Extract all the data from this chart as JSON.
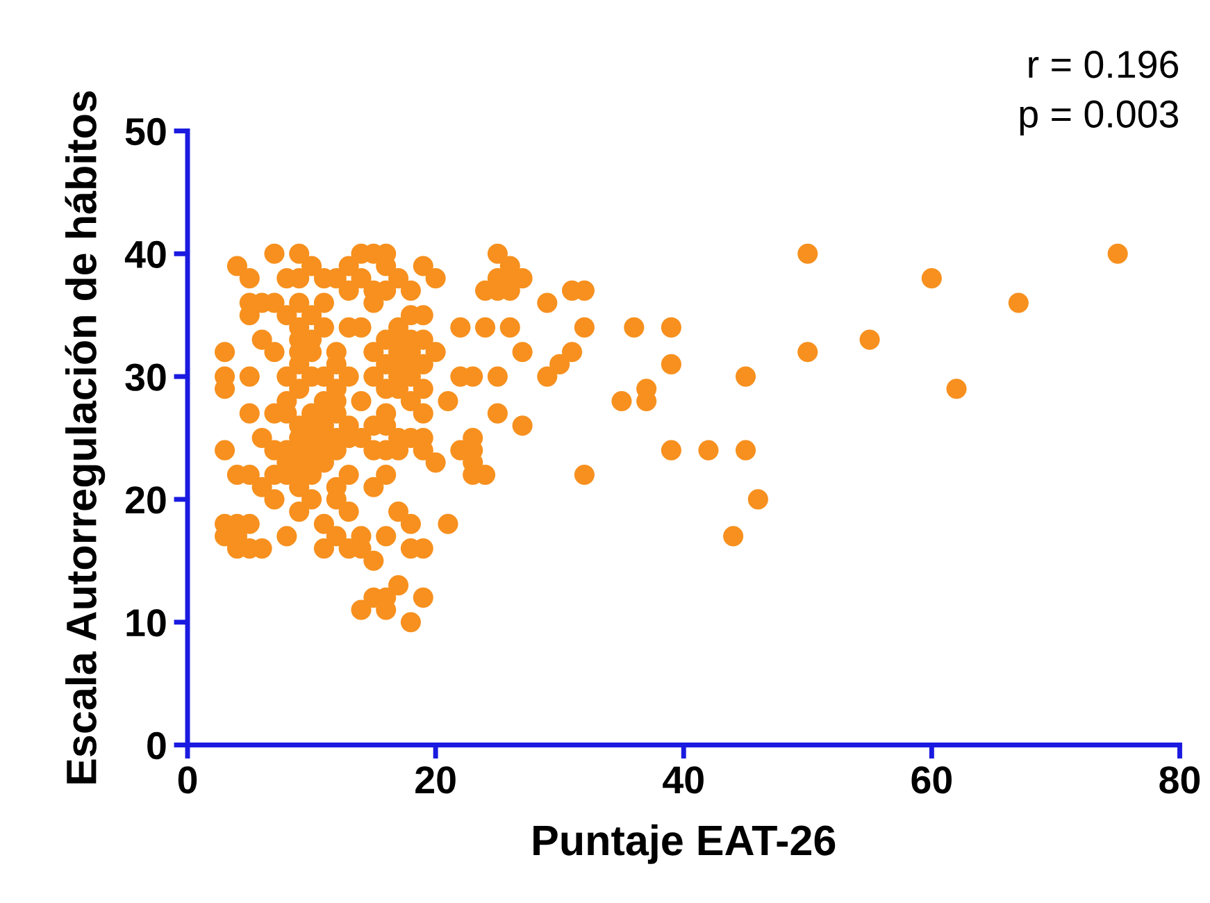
{
  "chart_data": {
    "type": "scatter",
    "xlabel": "Puntaje EAT-26",
    "ylabel": "Escala Autorregulación de hábitos",
    "annotations": [
      "r = 0.196",
      "p = 0.003"
    ],
    "xlim": [
      0,
      80
    ],
    "xticks": [
      0,
      20,
      40,
      60,
      80
    ],
    "ylim": [
      0,
      50
    ],
    "yticks": [
      0,
      10,
      20,
      30,
      40,
      50
    ],
    "grid": false,
    "marker": "circle",
    "series": [
      {
        "color": "#f7901e",
        "x": [
          3,
          3,
          3,
          3,
          3,
          3,
          4,
          4,
          4,
          4,
          4,
          5,
          5,
          5,
          5,
          5,
          5,
          5,
          5,
          6,
          6,
          6,
          6,
          6,
          7,
          7,
          7,
          7,
          7,
          7,
          7,
          8,
          8,
          8,
          8,
          8,
          8,
          8,
          8,
          8,
          9,
          9,
          9,
          9,
          9,
          9,
          9,
          9,
          9,
          9,
          9,
          9,
          9,
          9,
          9,
          10,
          10,
          10,
          10,
          10,
          10,
          10,
          10,
          10,
          10,
          10,
          10,
          11,
          11,
          11,
          11,
          11,
          11,
          11,
          11,
          11,
          11,
          11,
          11,
          12,
          12,
          12,
          12,
          12,
          12,
          12,
          12,
          12,
          12,
          12,
          13,
          13,
          13,
          13,
          13,
          13,
          13,
          13,
          13,
          14,
          14,
          14,
          14,
          14,
          14,
          14,
          14,
          15,
          15,
          15,
          15,
          15,
          15,
          15,
          15,
          15,
          15,
          16,
          16,
          16,
          16,
          16,
          16,
          16,
          16,
          16,
          16,
          16,
          16,
          16,
          17,
          17,
          17,
          17,
          17,
          17,
          17,
          17,
          17,
          17,
          17,
          18,
          18,
          18,
          18,
          18,
          18,
          18,
          18,
          18,
          18,
          18,
          19,
          19,
          19,
          19,
          19,
          19,
          19,
          19,
          19,
          19,
          20,
          20,
          20,
          21,
          21,
          22,
          22,
          22,
          23,
          23,
          23,
          23,
          23,
          24,
          24,
          24,
          25,
          25,
          25,
          25,
          25,
          26,
          26,
          26,
          26,
          27,
          27,
          27,
          29,
          29,
          30,
          31,
          31,
          32,
          32,
          32,
          35,
          36,
          37,
          37,
          39,
          39,
          39,
          42,
          44,
          45,
          45,
          46,
          50,
          50,
          55,
          60,
          62,
          67,
          75
        ],
        "values": [
          32,
          30,
          29,
          24,
          18,
          17,
          39,
          22,
          18,
          17,
          16,
          38,
          36,
          35,
          30,
          27,
          22,
          18,
          16,
          36,
          33,
          25,
          21,
          16,
          40,
          36,
          32,
          27,
          24,
          22,
          20,
          38,
          35,
          30,
          28,
          27,
          24,
          23,
          22,
          17,
          40,
          38,
          36,
          34,
          33,
          32,
          31,
          29,
          26,
          25,
          24,
          23,
          22,
          21,
          19,
          39,
          35,
          33,
          32,
          30,
          27,
          26,
          25,
          24,
          23,
          22,
          20,
          38,
          36,
          34,
          30,
          28,
          27,
          26,
          25,
          24,
          23,
          18,
          16,
          38,
          32,
          31,
          29,
          28,
          27,
          25,
          24,
          21,
          20,
          17,
          39,
          37,
          34,
          30,
          26,
          25,
          22,
          19,
          16,
          40,
          38,
          34,
          28,
          25,
          17,
          16,
          11,
          40,
          37,
          36,
          32,
          30,
          26,
          24,
          21,
          15,
          12,
          40,
          39,
          37,
          33,
          31,
          29,
          27,
          26,
          24,
          22,
          17,
          12,
          11,
          38,
          34,
          33,
          32,
          31,
          30,
          29,
          25,
          24,
          19,
          13,
          37,
          35,
          33,
          32,
          31,
          30,
          28,
          25,
          18,
          16,
          10,
          39,
          35,
          33,
          31,
          29,
          27,
          25,
          24,
          16,
          12,
          38,
          32,
          23,
          28,
          18,
          34,
          30,
          24,
          30,
          25,
          24,
          23,
          22,
          37,
          34,
          22,
          40,
          38,
          37,
          30,
          27,
          39,
          38,
          37,
          34,
          38,
          32,
          26,
          36,
          30,
          31,
          37,
          32,
          37,
          34,
          22,
          28,
          34,
          29,
          28,
          34,
          31,
          24,
          24,
          17,
          30,
          24,
          20,
          40,
          32,
          33,
          38,
          29,
          36,
          40
        ]
      }
    ]
  }
}
